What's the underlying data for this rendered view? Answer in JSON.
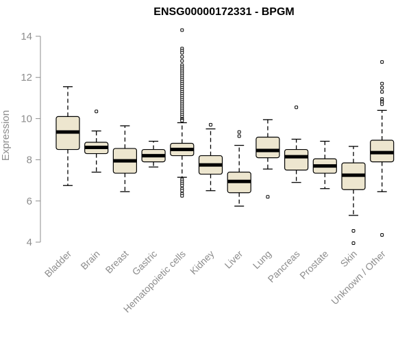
{
  "chart_data": {
    "type": "boxplot",
    "title": "ENSG00000172331 - BPGM",
    "xlabel": "",
    "ylabel": "Expression",
    "ylim": [
      4,
      14
    ],
    "yticks": [
      4,
      6,
      8,
      10,
      12,
      14
    ],
    "colors": {
      "box_fill": "#ede6cf",
      "box_stroke": "#000000",
      "axis": "#8c8c8c"
    },
    "categories": [
      "Bladder",
      "Brain",
      "Breast",
      "Gastric",
      "Hematopoietic cells",
      "Kidney",
      "Liver",
      "Lung",
      "Pancreas",
      "Prostate",
      "Skin",
      "Unknown / Other"
    ],
    "boxes": [
      {
        "category": "Bladder",
        "whisker_low": 6.75,
        "q1": 8.5,
        "median": 9.35,
        "q3": 10.1,
        "whisker_high": 11.55,
        "outliers": []
      },
      {
        "category": "Brain",
        "whisker_low": 7.4,
        "q1": 8.3,
        "median": 8.6,
        "q3": 8.85,
        "whisker_high": 9.4,
        "outliers": [
          10.35
        ]
      },
      {
        "category": "Breast",
        "whisker_low": 6.45,
        "q1": 7.35,
        "median": 7.95,
        "q3": 8.55,
        "whisker_high": 9.65,
        "outliers": []
      },
      {
        "category": "Gastric",
        "whisker_low": 7.65,
        "q1": 7.9,
        "median": 8.2,
        "q3": 8.5,
        "whisker_high": 8.9,
        "outliers": []
      },
      {
        "category": "Hematopoietic cells",
        "whisker_low": 7.15,
        "q1": 8.2,
        "median": 8.5,
        "q3": 8.8,
        "whisker_high": 9.8,
        "outliers": [
          14.3,
          13.4,
          13.3,
          13.2,
          13.0,
          12.8,
          12.6,
          12.5,
          12.4,
          12.3,
          12.2,
          12.1,
          12.0,
          11.9,
          11.8,
          11.7,
          11.6,
          11.5,
          11.4,
          11.3,
          11.2,
          11.1,
          11.0,
          10.9,
          10.8,
          10.7,
          10.6,
          10.5,
          10.4,
          10.3,
          10.2,
          10.1,
          10.0,
          9.95,
          9.9,
          7.05,
          6.95,
          6.85,
          6.75,
          6.6,
          6.5,
          6.35,
          6.25
        ]
      },
      {
        "category": "Kidney",
        "whisker_low": 6.5,
        "q1": 7.3,
        "median": 7.75,
        "q3": 8.2,
        "whisker_high": 9.5,
        "outliers": [
          9.7
        ]
      },
      {
        "category": "Liver",
        "whisker_low": 5.75,
        "q1": 6.4,
        "median": 6.95,
        "q3": 7.4,
        "whisker_high": 8.7,
        "outliers": [
          9.15,
          9.35
        ]
      },
      {
        "category": "Lung",
        "whisker_low": 7.55,
        "q1": 8.1,
        "median": 8.45,
        "q3": 9.1,
        "whisker_high": 9.95,
        "outliers": [
          6.2
        ]
      },
      {
        "category": "Pancreas",
        "whisker_low": 6.9,
        "q1": 7.5,
        "median": 8.15,
        "q3": 8.5,
        "whisker_high": 9.0,
        "outliers": [
          10.55
        ]
      },
      {
        "category": "Prostate",
        "whisker_low": 6.6,
        "q1": 7.35,
        "median": 7.7,
        "q3": 8.05,
        "whisker_high": 8.9,
        "outliers": []
      },
      {
        "category": "Skin",
        "whisker_low": 5.3,
        "q1": 6.55,
        "median": 7.25,
        "q3": 7.85,
        "whisker_high": 8.65,
        "outliers": [
          4.55,
          3.95
        ]
      },
      {
        "category": "Unknown / Other",
        "whisker_low": 6.45,
        "q1": 7.9,
        "median": 8.35,
        "q3": 8.95,
        "whisker_high": 10.4,
        "outliers": [
          12.75,
          11.7,
          11.5,
          11.3,
          10.95,
          10.85,
          10.8,
          10.7,
          4.35
        ]
      }
    ]
  }
}
